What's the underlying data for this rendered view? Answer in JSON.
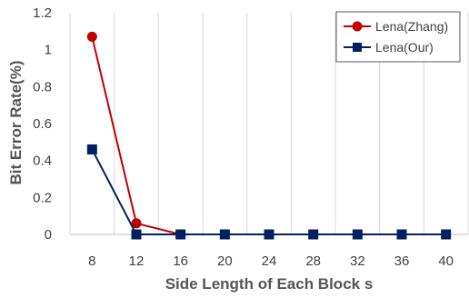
{
  "chart_data": {
    "type": "line",
    "xlabel": "Side Length of Each Block s",
    "ylabel": "Bit Error Rate(%)",
    "categories": [
      "8",
      "12",
      "16",
      "20",
      "24",
      "28",
      "32",
      "36",
      "40"
    ],
    "ylim": [
      0,
      1.2
    ],
    "yticks": [
      "0",
      "0.2",
      "0.4",
      "0.6",
      "0.8",
      "1",
      "1.2"
    ],
    "grid": "vertical",
    "legend_position": "top-right",
    "series": [
      {
        "name": "Lena(Zhang)",
        "color": "#C00000",
        "marker": "circle",
        "values": [
          1.07,
          0.06,
          0,
          null,
          null,
          null,
          null,
          null,
          null
        ]
      },
      {
        "name": "Lena(Our)",
        "color": "#002060",
        "marker": "square",
        "values": [
          0.46,
          0,
          0,
          0,
          0,
          0,
          0,
          0,
          0
        ]
      }
    ]
  }
}
